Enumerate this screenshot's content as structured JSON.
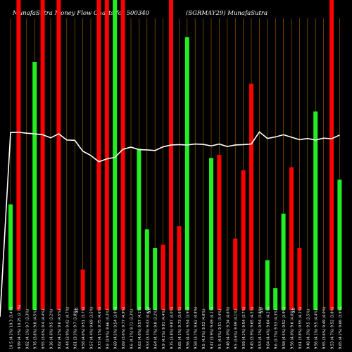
{
  "chart_data": {
    "type": "bar",
    "title_left": "MunafaSutra  Money Flow  Charts for 500340",
    "title_right": "(SGRMAY29) MunafaSutra",
    "y_range": [
      0,
      100
    ],
    "grid": "vertical",
    "colors": {
      "background": "#000000",
      "up": "#22ee22",
      "down": "#ff0000",
      "line": "#ffffff",
      "grid": "#aa6600"
    },
    "categories": [
      "Sat 04 Oct 2025 Fri 03 Oct 2025",
      "Thu 02 Oct 2025 Wed 01 Oct 2025",
      "Tue 30 Sep 2025 Mon 29 Sep 2025",
      "Fri 26 Sep 2025 Thu 25 Sep 2025",
      "Wed 24 Sep 2025 Tue 23 Sep 2025",
      "Mon 22 Sep 2025 Fri 19 Sep 2025",
      "Thu 18 Sep 2025 Wed 17 Sep 2025",
      "Tue 16 Sep 2025 Mon 15 Sep 2025",
      "Fri 12 Sep 2025 Thu 11 Sep 2025",
      "Wed 10 Sep 2025 Tue 09 Sep 2025",
      "Mon 08 Sep 2025 Fri 05 Sep 2025",
      "Thu 04 Sep 2025 Wed 03 Sep 2025",
      "Tue 02 Sep 2025 Mon 01 Sep 2025",
      "Fri 29 Aug 2025 Thu 28 Aug 2025",
      "Wed 27 Aug 2025 Tue 26 Aug 2025",
      "Mon 25 Aug 2025 Fri 22 Aug 2025",
      "Thu 21 Aug 2025 Wed 20 Aug 2025",
      "Tue 19 Aug 2025 Mon 18 Aug 2025",
      "Thu 14 Aug 2025 Wed 13 Aug 2025",
      "Tue 12 Aug 2025 Mon 11 Aug 2025",
      "Fri 08 Aug 2025 Thu 07 Aug 2025",
      "Wed 06 Aug 2025 Tue 05 Aug 2025",
      "Mon 04 Aug 2025 Fri 01 Aug 2025",
      "Thu 31 Jul 2025 Wed 30 Jul 2025",
      "Tue 29 Jul 2025 Mon 28 Jul 2025",
      "Fri 25 Jul 2025 Thu 24 Jul 2025",
      "Wed 23 Jul 2025 Tue 22 Jul 2025",
      "Mon 21 Jul 2025 Fri 18 Jul 2025",
      "Thu 17 Jul 2025 Wed 16 Jul 2025",
      "Tue 15 Jul 2025 Mon 14 Jul 2025",
      "Fri 11 Jul 2025 Thu 10 Jul 2025",
      "Wed 09 Jul 2025 Tue 08 Jul 2025",
      "Mon 07 Jul 2025 Fri 04 Jul 2025",
      "Thu 03 Jul 2025 Wed 02 Jul 2025",
      "Tue 01 Jul 2025 Mon 30 Jun 2025",
      "Fri 27 Jun 2025 Thu 26 Jun 2025",
      "Wed 25 Jun 2025 Tue 24 Jun 2025",
      "Mon 23 Jun 2025 Fri 20 Jun 2025",
      "Thu 19 Jun 2025 Wed 18 Jun 2025",
      "Tue 17 Jun 2025 Mon 16 Jun 2025",
      "Fri 13 Jun 2025 Thu 12 Jun 2025",
      "Wed 11 Jun 2025 Tue 10 Jun 2025"
    ],
    "x_labels": [
      "10.5 (4.2%) 10.3 (3.4%)",
      "9.99 (4.3%) 10.25 (2.7%)",
      "9.82 (4.1%) 9.7 (3.3%)",
      "9.76 (3.8%) 9.8 (4.5%)",
      "9.55 (3.6%) 9.4 (4.4%)",
      "9.36 (4.6%) 9.5 (3.2%)",
      "9.62 (4.2%) 9.6 (4.5%)",
      "9.44 (3.9%) 9.42 (4.7%)",
      "9.61 (3.3%) 9.7 (3.8%)",
      "9.58 (4.0%) 9.51 (3.7%)",
      "9.57 (4.4%) 9.69 (3.5%)",
      "9.73 (4.1%) 9.75 (4.6%)",
      "9.8 (3.9%) 9.66 (4.3%)",
      "9.69 (4.5%) 9.54 (3.8%)",
      "9.69 (3.6%) 9.77 (4.9%)",
      "9.6 (4.3%) 9.71 (3.3%)",
      "9.63 (4.0%) 9.57 (4.1%)",
      "9.53 (3.5%) 9.43 (4.6%)",
      "9.64 (4.7%) 9.8 (3.2%)",
      "9.9 (4.2%) 9.91 (4.4%)",
      "9.75 (3.8%) 9.87 (4.0%)",
      "9.65 (4.1%) 9.73 (3.6%)",
      "9.56 (4.4%) 9.54 (3.9%)",
      "9.58 (3.7%) 9.62 (4.8%)",
      "9.5 (4.3%) 9.53 (4.0%)",
      "9.47 (3.9%) 9.49 (4.2%)",
      "9.5 (4.5%) 9.51 (3.4%)",
      "9.48 (4.0%) 9.34 (4.6%)",
      "9.5 (3.6%) 9.59 (4.1%)",
      "9.59 (4.2%) 9.54 (3.7%)",
      "9.45 (3.9%) 9.65 (4.5%)",
      "9.53 (4.1%) 9.54 (3.8%)",
      "9.64 (4.4%) 9.64 (4.2%)",
      "9.6 (3.7%) 9.53 (4.3%)",
      "9.58 (4.5%) 9.52 (3.9%)",
      "9.56 (4.0%) 9.6 (4.6%)",
      "9.61 (3.8%) 9.55 (4.2%)",
      "9.48 (4.3%) 9.5 (3.5%)",
      "9.56 (4.1%) 9.5 (4.4%)",
      "9.55 (3.6%) 9.49 (4.0%)",
      "9.53 (4.7%) 9.52 (3.8%)",
      "9.65 (4.2%) 9.66 (3.9%)"
    ],
    "marker_positions": [
      8,
      17,
      31,
      35
    ],
    "marker_label": "0.0",
    "series": [
      {
        "kind": "bar",
        "values": [
          34,
          100,
          0,
          80,
          100,
          0,
          100,
          0,
          0,
          13,
          0,
          100,
          100,
          100,
          100,
          0,
          52,
          26,
          20,
          21,
          100,
          27,
          88,
          0,
          0,
          49,
          50,
          0,
          23,
          45,
          73,
          0,
          16,
          7,
          31,
          46,
          20,
          0,
          64,
          0,
          100,
          42
        ],
        "colors": [
          "up",
          "down",
          "up",
          "up",
          "down",
          "up",
          "down",
          "up",
          "up",
          "down",
          "down",
          "down",
          "down",
          "up",
          "down",
          "up",
          "up",
          "up",
          "up",
          "down",
          "down",
          "down",
          "up",
          "down",
          "up",
          "up",
          "down",
          "up",
          "down",
          "down",
          "down",
          "up",
          "up",
          "up",
          "up",
          "down",
          "down",
          "up",
          "up",
          "up",
          "down",
          "up"
        ]
      },
      {
        "kind": "line",
        "values": [
          57.2,
          57.3,
          57.0,
          56.8,
          56.5,
          55.5,
          56.8,
          54.8,
          54.7,
          51.2,
          49.8,
          47.8,
          48.7,
          49.2,
          51.8,
          52.5,
          51.7,
          51.6,
          51.4,
          52.6,
          53.2,
          53.3,
          53.2,
          53.5,
          53.4,
          52.9,
          53.5,
          52.7,
          53.2,
          53.3,
          53.5,
          57.4,
          55.3,
          55.8,
          56.5,
          55.7,
          54.9,
          55.3,
          54.8,
          55.4,
          55.2,
          56.4
        ]
      }
    ]
  }
}
